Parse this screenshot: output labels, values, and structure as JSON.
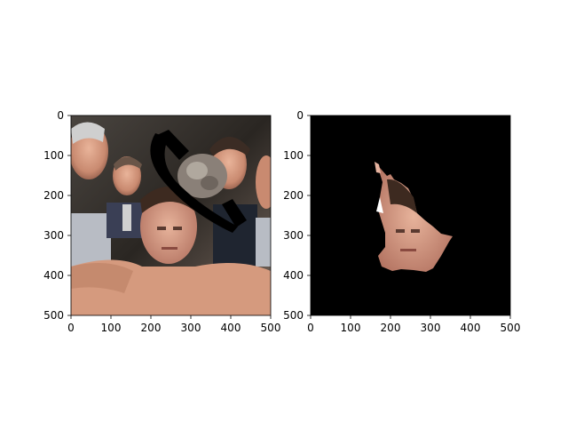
{
  "figure": {
    "panels": [
      {
        "id": "left",
        "content": "original image with black occlusion stroke",
        "x_ticks": [
          "0",
          "100",
          "200",
          "300",
          "400",
          "500"
        ],
        "y_ticks": [
          "0",
          "100",
          "200",
          "300",
          "400",
          "500"
        ],
        "x_range": [
          0,
          500
        ],
        "y_range": [
          0,
          500
        ]
      },
      {
        "id": "right",
        "content": "segmented face on black background",
        "x_ticks": [
          "0",
          "100",
          "200",
          "300",
          "400",
          "500"
        ],
        "y_ticks": [
          "0",
          "100",
          "200",
          "300",
          "400",
          "500"
        ],
        "x_range": [
          0,
          500
        ],
        "y_range": [
          0,
          500
        ]
      }
    ]
  }
}
